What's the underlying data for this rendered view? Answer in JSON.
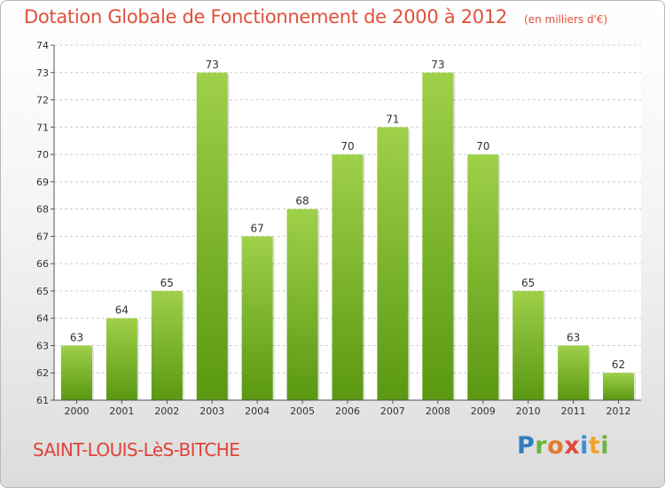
{
  "header": {
    "title": "Dotation Globale de Fonctionnement de 2000 à 2012",
    "subtitle": "(en milliers d'€)"
  },
  "footer": {
    "city": "SAINT-LOUIS-LèS-BITCHE",
    "logo_text": "Proxiti"
  },
  "colors": {
    "title": "#e0503a",
    "bar_top": "#9fd04a",
    "bar_bottom": "#5a9812",
    "grid": "#cccccc",
    "logo_letters": [
      "#2f7fc1",
      "#6cb33f",
      "#e27b2e",
      "#e04a3c",
      "#3b8fd0",
      "#f0a32a",
      "#6cb33f"
    ]
  },
  "chart_data": {
    "type": "bar",
    "title": "Dotation Globale de Fonctionnement de 2000 à 2012",
    "subtitle": "(en milliers d'€)",
    "categories": [
      "2000",
      "2001",
      "2002",
      "2003",
      "2004",
      "2005",
      "2006",
      "2007",
      "2008",
      "2009",
      "2010",
      "2011",
      "2012"
    ],
    "values": [
      63,
      64,
      65,
      73,
      67,
      68,
      70,
      71,
      73,
      70,
      65,
      63,
      62
    ],
    "data_labels": [
      "63",
      "64",
      "65",
      "73",
      "67",
      "68",
      "70",
      "71",
      "73",
      "70",
      "65",
      "63",
      "62"
    ],
    "yticks": [
      "61",
      "62",
      "63",
      "64",
      "65",
      "66",
      "67",
      "68",
      "69",
      "70",
      "71",
      "72",
      "73",
      "74"
    ],
    "ylim": [
      61,
      74
    ],
    "xlabel": "",
    "ylabel": "",
    "grid": true
  }
}
